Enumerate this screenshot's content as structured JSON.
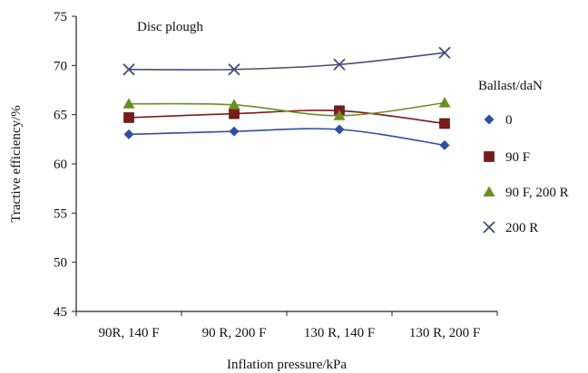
{
  "chart_data": {
    "type": "line",
    "title": "",
    "annotation": "Disc plough",
    "xlabel": "Inflation pressure/kPa",
    "ylabel": "Tractive efficiency/%",
    "categories": [
      "90R, 140 F",
      "90 R, 200 F",
      "130 R, 140 F",
      "130 R, 200 F"
    ],
    "ylim": [
      45,
      75
    ],
    "yticks": [
      45,
      50,
      55,
      60,
      65,
      70,
      75
    ],
    "grid": false,
    "legend": {
      "title": "Ballast/daN",
      "position": "right"
    },
    "series": [
      {
        "name": "0",
        "values": [
          63.0,
          63.3,
          63.5,
          61.9
        ],
        "color": "#2f4f9f",
        "marker": "diamond"
      },
      {
        "name": "90 F",
        "values": [
          64.7,
          65.1,
          65.4,
          64.1
        ],
        "color": "#7a1b1b",
        "marker": "square"
      },
      {
        "name": "90 F, 200 R",
        "values": [
          66.1,
          66.0,
          64.9,
          66.2
        ],
        "color": "#6b8e23",
        "marker": "triangle"
      },
      {
        "name": "200 R",
        "values": [
          69.6,
          69.6,
          70.1,
          71.3
        ],
        "color": "#4b4b7a",
        "marker": "cross"
      }
    ]
  }
}
